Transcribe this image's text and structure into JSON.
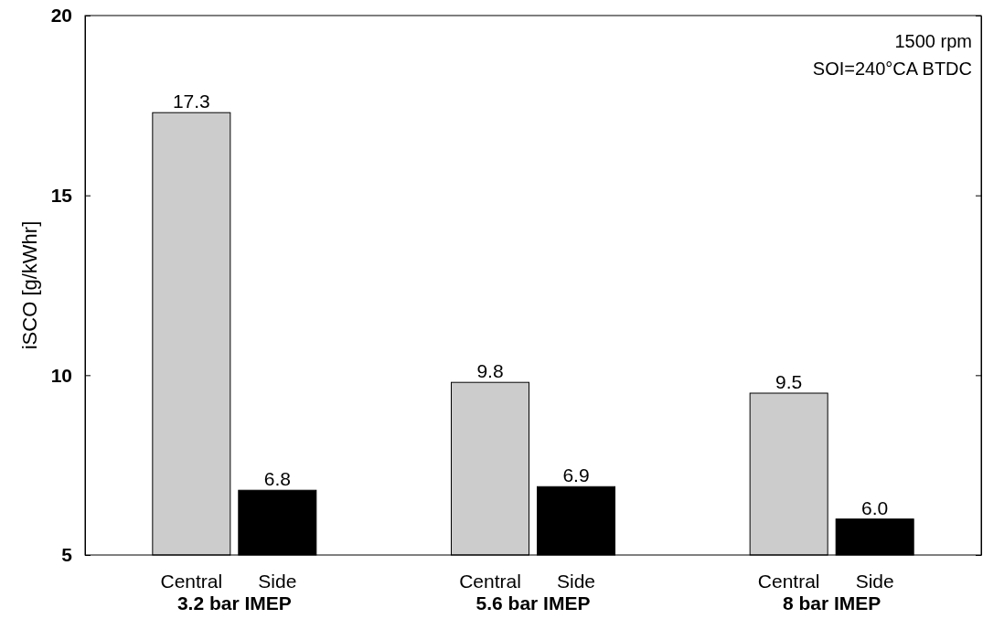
{
  "chart_data": {
    "type": "bar",
    "ylabel": "iSCO [g/kWhr]",
    "categories": [
      "3.2 bar IMEP",
      "5.6 bar IMEP",
      "8 bar IMEP"
    ],
    "series": [
      {
        "name": "Central",
        "color": "#cccccc",
        "values": [
          17.3,
          9.8,
          9.5
        ],
        "value_labels": [
          "17.3",
          "9.8",
          "9.5"
        ]
      },
      {
        "name": "Side",
        "color": "#000000",
        "values": [
          6.8,
          6.9,
          6.0
        ],
        "value_labels": [
          "6.8",
          "6.9",
          "6.0"
        ]
      }
    ],
    "ylim": [
      5,
      20
    ],
    "yticks": [
      5,
      10,
      15,
      20
    ],
    "grid": false,
    "annotations": [
      "1500 rpm",
      "SOI=240°CA BTDC"
    ]
  }
}
